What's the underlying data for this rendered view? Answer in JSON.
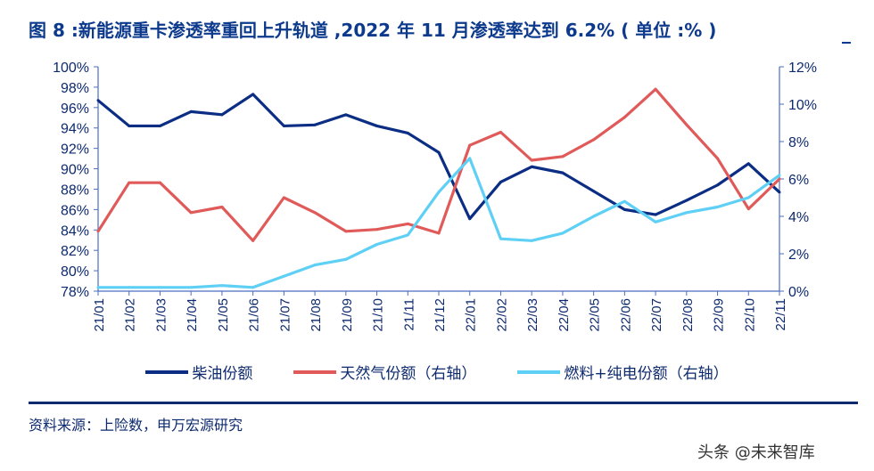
{
  "title": "图 8 :新能源重卡渗透率重回上升轨道 ,2022 年 11 月渗透率达到 6.2% ( 单位 :% )",
  "source": "资料来源：上险数，申万宏源研究",
  "watermark": "头条 @未来智库",
  "chart_data": {
    "type": "line",
    "categories": [
      "21/01",
      "21/02",
      "21/03",
      "21/04",
      "21/05",
      "21/06",
      "21/07",
      "21/08",
      "21/09",
      "21/10",
      "21/11",
      "21/12",
      "22/01",
      "22/02",
      "22/03",
      "22/04",
      "22/05",
      "22/06",
      "22/07",
      "22/08",
      "22/09",
      "22/10",
      "22/11"
    ],
    "left_axis": {
      "range": [
        78,
        100
      ],
      "ticks": [
        "78%",
        "80%",
        "82%",
        "84%",
        "86%",
        "88%",
        "90%",
        "92%",
        "94%",
        "96%",
        "98%",
        "100%"
      ]
    },
    "right_axis": {
      "range": [
        0,
        12
      ],
      "ticks": [
        "0%",
        "2%",
        "4%",
        "6%",
        "8%",
        "10%",
        "12%"
      ]
    },
    "series": [
      {
        "name": "柴油份额",
        "axis": "left",
        "color": "#0b2d83",
        "values": [
          96.7,
          94.2,
          94.2,
          95.6,
          95.3,
          97.3,
          94.2,
          94.3,
          95.3,
          94.2,
          93.5,
          91.6,
          85.1,
          88.7,
          90.2,
          89.6,
          87.8,
          86.0,
          85.5,
          86.9,
          88.4,
          90.5,
          87.7
        ]
      },
      {
        "name": "天然气份额（右轴）",
        "axis": "right",
        "color": "#e05a5a",
        "values": [
          3.2,
          5.8,
          5.8,
          4.2,
          4.5,
          2.7,
          5.0,
          4.2,
          3.2,
          3.3,
          3.6,
          3.1,
          7.8,
          8.5,
          7.0,
          7.2,
          8.1,
          9.3,
          10.8,
          8.9,
          7.1,
          4.4,
          6.0
        ]
      },
      {
        "name": "燃料+纯电份额（右轴）",
        "axis": "right",
        "color": "#5ecff5",
        "values": [
          0.2,
          0.2,
          0.2,
          0.2,
          0.3,
          0.2,
          0.8,
          1.4,
          1.7,
          2.5,
          3.0,
          5.3,
          7.1,
          2.8,
          2.7,
          3.1,
          4.0,
          4.8,
          3.7,
          4.2,
          4.5,
          5.0,
          6.2
        ]
      }
    ],
    "legend_position": "bottom",
    "grid": false
  }
}
